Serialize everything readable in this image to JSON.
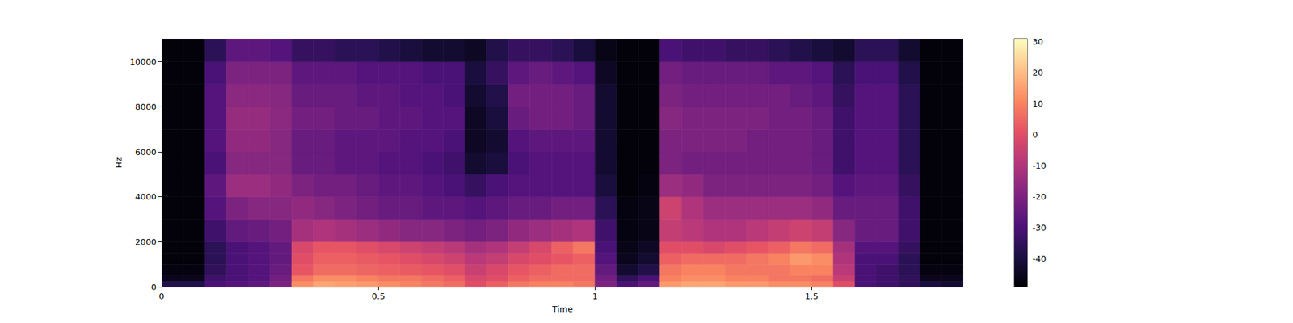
{
  "chart_data": {
    "type": "spectrogram",
    "x_label": "Time",
    "y_label": "Hz",
    "xlim": [
      0,
      1.85
    ],
    "xticks": [
      0,
      0.5,
      1,
      1.5
    ],
    "ylim": [
      0,
      11025
    ],
    "yticks": [
      0,
      2000,
      4000,
      6000,
      8000,
      10000
    ],
    "grid": false,
    "time_edges": [
      0,
      0.05,
      0.1,
      0.15,
      0.2,
      0.25,
      0.3,
      0.35,
      0.4,
      0.45,
      0.5,
      0.55,
      0.6,
      0.65,
      0.7,
      0.75,
      0.8,
      0.85,
      0.9,
      0.95,
      1.0,
      1.05,
      1.1,
      1.15,
      1.2,
      1.25,
      1.3,
      1.35,
      1.4,
      1.45,
      1.5,
      1.55,
      1.6,
      1.65,
      1.7,
      1.75,
      1.8,
      1.85
    ],
    "freq_edges": [
      0,
      250,
      500,
      1000,
      1500,
      2000,
      3000,
      4000,
      5000,
      6000,
      7000,
      8000,
      9000,
      10000,
      11025
    ],
    "cells": [
      [
        -38,
        -38,
        -30,
        -28,
        -26,
        -20,
        12,
        16,
        15,
        14,
        12,
        10,
        8,
        6,
        0,
        4,
        8,
        10,
        10,
        8,
        -20,
        -30,
        -25,
        14,
        16,
        16,
        14,
        14,
        12,
        12,
        10,
        0,
        -30,
        -32,
        -35,
        -40,
        -42
      ],
      [
        -45,
        -45,
        -32,
        -30,
        -28,
        -22,
        8,
        12,
        12,
        10,
        8,
        8,
        6,
        4,
        -2,
        0,
        4,
        6,
        6,
        6,
        -22,
        -35,
        -30,
        10,
        12,
        12,
        10,
        10,
        8,
        8,
        6,
        -5,
        -30,
        -32,
        -35,
        -45,
        -45
      ],
      [
        -47,
        -47,
        -35,
        -30,
        -28,
        -24,
        2,
        6,
        6,
        5,
        4,
        3,
        2,
        0,
        -5,
        -2,
        2,
        4,
        6,
        6,
        -25,
        -42,
        -38,
        8,
        10,
        10,
        8,
        8,
        8,
        10,
        10,
        -8,
        -30,
        -32,
        -36,
        -47,
        -47
      ],
      [
        -48,
        -48,
        -36,
        -30,
        -28,
        -25,
        0,
        4,
        4,
        3,
        2,
        0,
        -2,
        -4,
        -8,
        -6,
        -2,
        0,
        2,
        4,
        -28,
        -45,
        -42,
        4,
        6,
        6,
        6,
        8,
        10,
        14,
        12,
        -10,
        -30,
        -30,
        -36,
        -48,
        -48
      ],
      [
        -48,
        -48,
        -36,
        -30,
        -28,
        -25,
        -2,
        2,
        2,
        0,
        -2,
        -4,
        -6,
        -8,
        -12,
        -10,
        -6,
        -2,
        4,
        8,
        -30,
        -46,
        -44,
        0,
        0,
        -2,
        0,
        2,
        4,
        8,
        6,
        -12,
        -28,
        -28,
        -34,
        -48,
        -48
      ],
      [
        -48,
        -48,
        -32,
        -25,
        -24,
        -22,
        -12,
        -10,
        -12,
        -14,
        -16,
        -18,
        -18,
        -20,
        -22,
        -20,
        -16,
        -14,
        -12,
        -10,
        -32,
        -47,
        -46,
        -6,
        -8,
        -10,
        -10,
        -8,
        -6,
        -4,
        -6,
        -18,
        -24,
        -24,
        -32,
        -48,
        -48
      ],
      [
        -48,
        -48,
        -28,
        -20,
        -18,
        -18,
        -16,
        -18,
        -20,
        -22,
        -24,
        -24,
        -26,
        -26,
        -28,
        -26,
        -24,
        -24,
        -22,
        -22,
        -36,
        -47,
        -46,
        -4,
        -10,
        -14,
        -14,
        -14,
        -14,
        -14,
        -16,
        -24,
        -24,
        -24,
        -32,
        -48,
        -48
      ],
      [
        -48,
        -48,
        -26,
        -14,
        -14,
        -16,
        -20,
        -22,
        -22,
        -24,
        -26,
        -26,
        -28,
        -30,
        -34,
        -30,
        -28,
        -28,
        -28,
        -28,
        -40,
        -48,
        -47,
        -14,
        -16,
        -20,
        -20,
        -20,
        -20,
        -20,
        -22,
        -28,
        -26,
        -26,
        -34,
        -48,
        -48
      ],
      [
        -48,
        -48,
        -30,
        -18,
        -18,
        -18,
        -24,
        -24,
        -26,
        -26,
        -28,
        -28,
        -30,
        -32,
        -42,
        -40,
        -30,
        -28,
        -28,
        -28,
        -42,
        -48,
        -48,
        -20,
        -22,
        -22,
        -22,
        -22,
        -22,
        -22,
        -24,
        -32,
        -28,
        -28,
        -36,
        -48,
        -48
      ],
      [
        -48,
        -48,
        -28,
        -16,
        -16,
        -18,
        -24,
        -24,
        -26,
        -26,
        -26,
        -28,
        -28,
        -30,
        -44,
        -42,
        -28,
        -26,
        -26,
        -26,
        -42,
        -48,
        -48,
        -20,
        -20,
        -20,
        -20,
        -22,
        -22,
        -22,
        -24,
        -32,
        -28,
        -28,
        -36,
        -48,
        -48
      ],
      [
        -48,
        -48,
        -28,
        -15,
        -15,
        -17,
        -22,
        -22,
        -24,
        -24,
        -26,
        -26,
        -28,
        -28,
        -44,
        -40,
        -24,
        -22,
        -22,
        -24,
        -42,
        -48,
        -48,
        -18,
        -20,
        -20,
        -20,
        -20,
        -22,
        -22,
        -24,
        -32,
        -28,
        -28,
        -36,
        -48,
        -48
      ],
      [
        -48,
        -48,
        -28,
        -17,
        -17,
        -18,
        -24,
        -24,
        -24,
        -26,
        -26,
        -28,
        -28,
        -30,
        -42,
        -38,
        -22,
        -22,
        -22,
        -24,
        -42,
        -48,
        -48,
        -20,
        -22,
        -22,
        -22,
        -22,
        -22,
        -24,
        -26,
        -34,
        -28,
        -28,
        -36,
        -48,
        -48
      ],
      [
        -48,
        -48,
        -30,
        -20,
        -20,
        -20,
        -26,
        -26,
        -26,
        -28,
        -28,
        -28,
        -30,
        -30,
        -40,
        -34,
        -26,
        -24,
        -26,
        -28,
        -44,
        -48,
        -48,
        -22,
        -24,
        -24,
        -24,
        -24,
        -26,
        -26,
        -28,
        -36,
        -30,
        -30,
        -38,
        -48,
        -48
      ],
      [
        -48,
        -48,
        -36,
        -26,
        -26,
        -28,
        -34,
        -34,
        -36,
        -36,
        -38,
        -40,
        -42,
        -42,
        -44,
        -38,
        -34,
        -34,
        -36,
        -40,
        -46,
        -48,
        -48,
        -30,
        -32,
        -32,
        -34,
        -34,
        -36,
        -38,
        -40,
        -42,
        -36,
        -36,
        -42,
        -48,
        -48
      ]
    ],
    "colorbar": {
      "range": [
        -49,
        31
      ],
      "ticks": [
        -40,
        -30,
        -20,
        -10,
        0,
        10,
        20,
        30
      ]
    }
  }
}
